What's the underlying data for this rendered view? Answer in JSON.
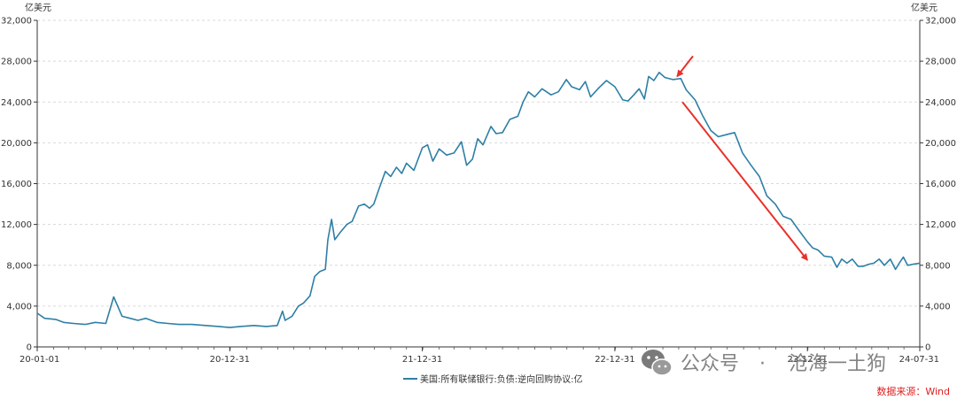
{
  "chart_data": {
    "type": "line",
    "yunit_left": "亿美元",
    "yunit_right": "亿美元",
    "ylim": [
      0,
      32000
    ],
    "yticks": [
      "0",
      "4,000",
      "8,000",
      "12,000",
      "16,000",
      "20,000",
      "24,000",
      "28,000",
      "32,000"
    ],
    "xticks": [
      "20-01-01",
      "20-12-31",
      "21-12-31",
      "22-12-31",
      "23-12-31",
      "24-07-31"
    ],
    "x_range": [
      "2020-01-01",
      "2024-07-31"
    ],
    "grid": true,
    "legend_position": "bottom-center",
    "series": [
      {
        "name": "美国:所有联储银行:负债:逆向回购协议:亿",
        "color": "#2e7fa6",
        "points": [
          [
            "2020-01-01",
            3300
          ],
          [
            "2020-01-15",
            2800
          ],
          [
            "2020-02-05",
            2700
          ],
          [
            "2020-02-20",
            2400
          ],
          [
            "2020-03-10",
            2300
          ],
          [
            "2020-04-01",
            2200
          ],
          [
            "2020-04-20",
            2400
          ],
          [
            "2020-05-10",
            2300
          ],
          [
            "2020-05-25",
            4900
          ],
          [
            "2020-06-10",
            3000
          ],
          [
            "2020-06-25",
            2800
          ],
          [
            "2020-07-10",
            2600
          ],
          [
            "2020-07-25",
            2800
          ],
          [
            "2020-08-15",
            2400
          ],
          [
            "2020-09-05",
            2300
          ],
          [
            "2020-09-25",
            2200
          ],
          [
            "2020-10-20",
            2200
          ],
          [
            "2020-11-15",
            2100
          ],
          [
            "2020-12-10",
            2000
          ],
          [
            "2020-12-31",
            1900
          ],
          [
            "2021-01-20",
            2000
          ],
          [
            "2021-02-15",
            2100
          ],
          [
            "2021-03-10",
            2000
          ],
          [
            "2021-03-31",
            2100
          ],
          [
            "2021-04-10",
            3500
          ],
          [
            "2021-04-15",
            2600
          ],
          [
            "2021-04-28",
            3000
          ],
          [
            "2021-05-10",
            4000
          ],
          [
            "2021-05-20",
            4300
          ],
          [
            "2021-06-01",
            5000
          ],
          [
            "2021-06-10",
            6900
          ],
          [
            "2021-06-20",
            7400
          ],
          [
            "2021-06-30",
            7600
          ],
          [
            "2021-07-05",
            10500
          ],
          [
            "2021-07-12",
            12500
          ],
          [
            "2021-07-18",
            10500
          ],
          [
            "2021-07-28",
            11200
          ],
          [
            "2021-08-10",
            12000
          ],
          [
            "2021-08-20",
            12300
          ],
          [
            "2021-09-01",
            13800
          ],
          [
            "2021-09-12",
            14000
          ],
          [
            "2021-09-22",
            13600
          ],
          [
            "2021-09-30",
            14000
          ],
          [
            "2021-10-10",
            15500
          ],
          [
            "2021-10-22",
            17200
          ],
          [
            "2021-11-01",
            16700
          ],
          [
            "2021-11-12",
            17600
          ],
          [
            "2021-11-22",
            17000
          ],
          [
            "2021-12-01",
            18000
          ],
          [
            "2021-12-15",
            17300
          ],
          [
            "2021-12-31",
            19500
          ],
          [
            "2022-01-10",
            19800
          ],
          [
            "2022-01-20",
            18200
          ],
          [
            "2022-02-01",
            19400
          ],
          [
            "2022-02-15",
            18800
          ],
          [
            "2022-03-01",
            19000
          ],
          [
            "2022-03-15",
            20100
          ],
          [
            "2022-03-25",
            17800
          ],
          [
            "2022-04-05",
            18400
          ],
          [
            "2022-04-15",
            20400
          ],
          [
            "2022-04-25",
            19800
          ],
          [
            "2022-05-10",
            21600
          ],
          [
            "2022-05-20",
            20900
          ],
          [
            "2022-06-01",
            21000
          ],
          [
            "2022-06-15",
            22300
          ],
          [
            "2022-06-30",
            22600
          ],
          [
            "2022-07-10",
            24000
          ],
          [
            "2022-07-20",
            25000
          ],
          [
            "2022-08-01",
            24500
          ],
          [
            "2022-08-15",
            25300
          ],
          [
            "2022-09-01",
            24700
          ],
          [
            "2022-09-15",
            25000
          ],
          [
            "2022-09-30",
            26200
          ],
          [
            "2022-10-10",
            25500
          ],
          [
            "2022-10-25",
            25200
          ],
          [
            "2022-11-05",
            26000
          ],
          [
            "2022-11-15",
            24500
          ],
          [
            "2022-12-01",
            25400
          ],
          [
            "2022-12-15",
            26100
          ],
          [
            "2022-12-31",
            25500
          ],
          [
            "2023-01-15",
            24200
          ],
          [
            "2023-01-25",
            24100
          ],
          [
            "2023-02-05",
            24700
          ],
          [
            "2023-02-15",
            25300
          ],
          [
            "2023-02-25",
            24300
          ],
          [
            "2023-03-05",
            26500
          ],
          [
            "2023-03-15",
            26100
          ],
          [
            "2023-03-25",
            26900
          ],
          [
            "2023-04-05",
            26400
          ],
          [
            "2023-04-20",
            26200
          ],
          [
            "2023-05-05",
            26300
          ],
          [
            "2023-05-15",
            25200
          ],
          [
            "2023-06-01",
            24200
          ],
          [
            "2023-06-15",
            22700
          ],
          [
            "2023-07-01",
            21200
          ],
          [
            "2023-07-15",
            20600
          ],
          [
            "2023-07-30",
            20800
          ],
          [
            "2023-08-15",
            21000
          ],
          [
            "2023-08-30",
            19000
          ],
          [
            "2023-09-15",
            17800
          ],
          [
            "2023-10-01",
            16700
          ],
          [
            "2023-10-15",
            14800
          ],
          [
            "2023-10-31",
            14000
          ],
          [
            "2023-11-15",
            12800
          ],
          [
            "2023-11-30",
            12500
          ],
          [
            "2023-12-15",
            11400
          ],
          [
            "2023-12-31",
            10300
          ],
          [
            "2024-01-10",
            9700
          ],
          [
            "2024-01-20",
            9500
          ],
          [
            "2024-02-01",
            8900
          ],
          [
            "2024-02-15",
            8800
          ],
          [
            "2024-02-25",
            7800
          ],
          [
            "2024-03-05",
            8600
          ],
          [
            "2024-03-15",
            8200
          ],
          [
            "2024-03-25",
            8600
          ],
          [
            "2024-04-05",
            7900
          ],
          [
            "2024-04-15",
            7900
          ],
          [
            "2024-04-25",
            8100
          ],
          [
            "2024-05-05",
            8200
          ],
          [
            "2024-05-15",
            8600
          ],
          [
            "2024-05-25",
            8000
          ],
          [
            "2024-06-05",
            8600
          ],
          [
            "2024-06-15",
            7600
          ],
          [
            "2024-06-22",
            8200
          ],
          [
            "2024-06-30",
            8800
          ],
          [
            "2024-07-08",
            8000
          ],
          [
            "2024-07-18",
            8100
          ],
          [
            "2024-07-31",
            8200
          ]
        ]
      }
    ],
    "annotations": [
      {
        "type": "arrow",
        "color": "#e8312b",
        "from": [
          "2023-05-28",
          28500
        ],
        "to": [
          "2023-04-28",
          26500
        ]
      },
      {
        "type": "arrow",
        "color": "#e8312b",
        "from": [
          "2023-05-08",
          24000
        ],
        "to": [
          "2023-12-31",
          8500
        ]
      }
    ],
    "source": "数据来源：Wind"
  },
  "watermark": {
    "icon": "wechat-icon",
    "parts": [
      "公众号",
      "·",
      "沧海一土狗"
    ]
  }
}
